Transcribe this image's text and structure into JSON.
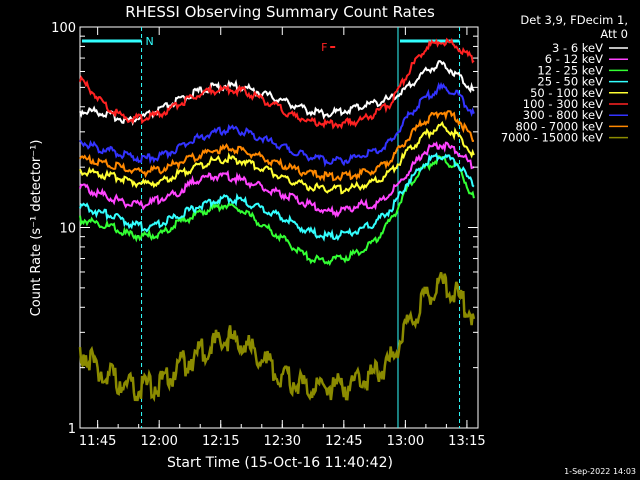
{
  "chart_data": {
    "type": "line",
    "title": "RHESSI Observing Summary Count Rates",
    "xlabel": "Start Time (15-Oct-16 11:40:42)",
    "ylabel": "Count Rate (s⁻¹ detector⁻¹)",
    "y_scale": "log",
    "ylim": [
      1,
      100
    ],
    "xlim_minutes": [
      0,
      97
    ],
    "x_ticks": [
      {
        "label": "11:45",
        "minute": 4.3
      },
      {
        "label": "12:00",
        "minute": 19.3
      },
      {
        "label": "12:15",
        "minute": 34.3
      },
      {
        "label": "12:30",
        "minute": 49.3
      },
      {
        "label": "12:45",
        "minute": 64.3
      },
      {
        "label": "13:00",
        "minute": 79.3
      },
      {
        "label": "13:15",
        "minute": 94.3
      }
    ],
    "y_ticks": [
      {
        "label": "1",
        "value": 1
      },
      {
        "label": "10",
        "value": 10
      },
      {
        "label": "100",
        "value": 100
      }
    ],
    "legend_header": [
      "Det 3,9, FDecim 1,",
      "Att 0"
    ],
    "legend_position": "outside-right",
    "annotations": {
      "night_label": "N",
      "flare_label": "F",
      "night_intervals_minutes": [
        [
          0,
          15
        ],
        [
          77.5,
          92.5
        ]
      ],
      "flare_marker_minute": 60
    },
    "x": [
      0,
      4,
      8,
      12,
      16,
      20,
      24,
      28,
      32,
      36,
      40,
      44,
      48,
      52,
      56,
      60,
      64,
      68,
      72,
      76,
      80,
      84,
      88,
      92,
      96
    ],
    "series": [
      {
        "name": "3 - 6 keV",
        "color": "#ffffff",
        "values": [
          38,
          38,
          36,
          34,
          36,
          39,
          43,
          47,
          50,
          51,
          50,
          47,
          44,
          41,
          38,
          37,
          38,
          40,
          42,
          44,
          50,
          60,
          66,
          58,
          48
        ]
      },
      {
        "name": "6 - 12 keV",
        "color": "#ff44ff",
        "values": [
          16,
          15,
          14,
          13,
          13,
          14,
          15,
          17,
          18,
          18,
          17,
          16,
          15,
          14,
          13,
          12,
          12,
          13,
          13,
          15,
          19,
          24,
          26,
          24,
          20
        ]
      },
      {
        "name": "12 - 25 keV",
        "color": "#33ff33",
        "values": [
          11,
          10.5,
          10,
          9.2,
          9.0,
          9.4,
          10.5,
          11.5,
          12.5,
          13,
          12,
          10.5,
          9.2,
          8.0,
          7.0,
          6.8,
          7.0,
          7.6,
          8.6,
          11,
          16,
          20,
          22,
          20,
          14
        ]
      },
      {
        "name": "25 - 50 keV",
        "color": "#33ffff",
        "values": [
          13,
          12,
          11.5,
          10.5,
          10,
          10.5,
          11.5,
          12.5,
          13.5,
          14,
          13.5,
          12.5,
          11.5,
          10.5,
          9.5,
          9.0,
          9.2,
          9.8,
          10.5,
          12.5,
          17,
          21,
          23,
          21,
          16
        ]
      },
      {
        "name": "50 - 100 keV",
        "color": "#ffff33",
        "values": [
          19,
          18.5,
          18,
          17,
          16.5,
          17,
          18.5,
          20,
          21.5,
          22,
          21.5,
          20,
          18.5,
          17,
          16,
          15.5,
          15.5,
          16,
          17,
          19,
          24,
          29,
          32,
          29,
          23
        ]
      },
      {
        "name": "100 - 300 keV",
        "color": "#ff2222",
        "values": [
          55,
          45,
          38,
          35,
          35,
          37,
          41,
          45,
          48,
          49,
          48,
          44,
          40,
          36,
          34,
          33,
          33,
          34,
          37,
          42,
          60,
          78,
          86,
          80,
          68
        ]
      },
      {
        "name": "300 - 800 keV",
        "color": "#3333ff",
        "values": [
          27,
          25,
          24,
          22.5,
          22,
          23,
          25,
          27.5,
          29.5,
          31,
          30,
          28,
          26,
          24,
          22.5,
          21.5,
          21.5,
          22.5,
          24,
          27,
          36,
          44,
          50,
          46,
          37
        ]
      },
      {
        "name": "800 - 7000 keV",
        "color": "#ff8800",
        "values": [
          22,
          21.5,
          20.5,
          19.5,
          19,
          19.5,
          21,
          22.5,
          24,
          25,
          24,
          22.5,
          21,
          19.5,
          18.5,
          18,
          18,
          18.5,
          19.5,
          22,
          28,
          34,
          38,
          35,
          27
        ]
      },
      {
        "name": "7000 - 15000 keV",
        "color": "#8b8b00",
        "values": [
          2.5,
          2.0,
          1.8,
          1.6,
          1.6,
          1.7,
          2.0,
          2.3,
          2.6,
          2.8,
          2.6,
          2.2,
          1.9,
          1.7,
          1.6,
          1.6,
          1.6,
          1.7,
          1.9,
          2.2,
          3.3,
          4.4,
          5.2,
          4.6,
          3.5
        ]
      }
    ],
    "grid": false
  },
  "footer": {
    "date_stamp": "1-Sep-2022 14:03"
  }
}
